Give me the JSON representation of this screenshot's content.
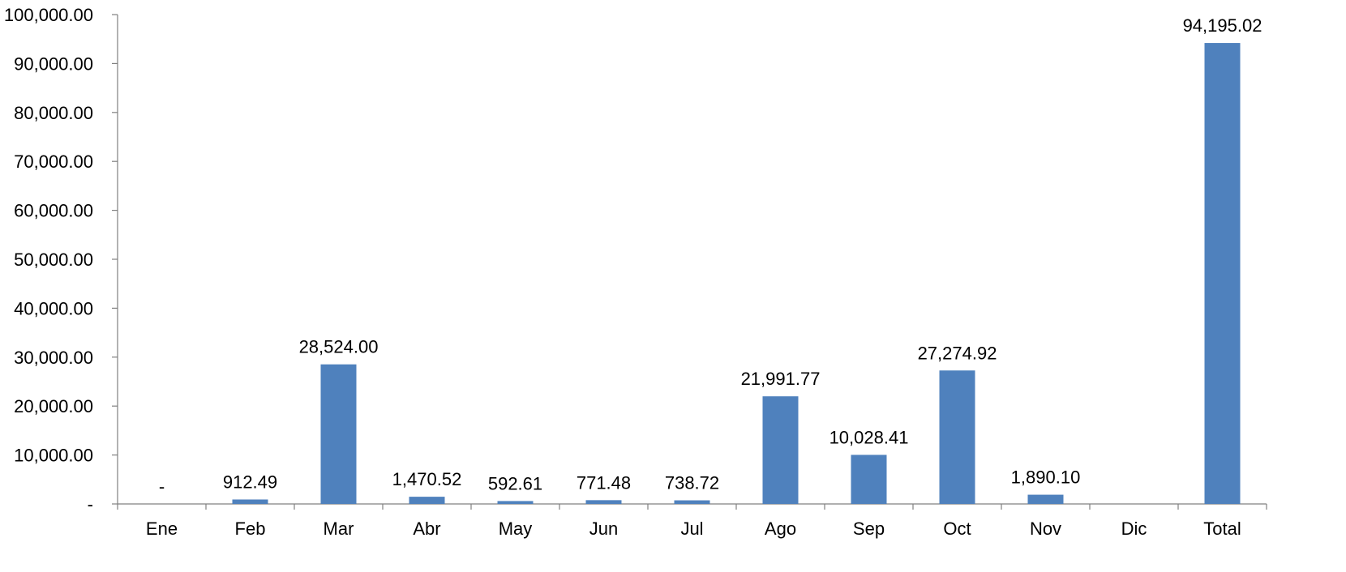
{
  "chart_data": {
    "type": "bar",
    "title": "",
    "xlabel": "",
    "ylabel": "",
    "categories": [
      "Ene",
      "Feb",
      "Mar",
      "Abr",
      "May",
      "Jun",
      "Jul",
      "Ago",
      "Sep",
      "Oct",
      "Nov",
      "Dic",
      "Total"
    ],
    "values": [
      0,
      912.49,
      28524.0,
      1470.52,
      592.61,
      771.48,
      738.72,
      21991.77,
      10028.41,
      27274.92,
      1890.1,
      null,
      94195.02
    ],
    "data_labels": [
      "-",
      "912.49",
      "28,524.00",
      "1,470.52",
      "592.61",
      "771.48",
      "738.72",
      "21,991.77",
      "10,028.41",
      "27,274.92",
      "1,890.10",
      "",
      "94,195.02"
    ],
    "ylim": [
      0,
      100000
    ],
    "y_ticks": [
      0,
      10000,
      20000,
      30000,
      40000,
      50000,
      60000,
      70000,
      80000,
      90000,
      100000
    ],
    "y_tick_labels": [
      "-",
      "10,000.00",
      "20,000.00",
      "30,000.00",
      "40,000.00",
      "50,000.00",
      "60,000.00",
      "70,000.00",
      "80,000.00",
      "90,000.00",
      "100,000.00"
    ],
    "grid": false,
    "legend": "none",
    "colors": {
      "bar": "#4f81bd",
      "axis": "#808080",
      "text": "#000000"
    }
  }
}
